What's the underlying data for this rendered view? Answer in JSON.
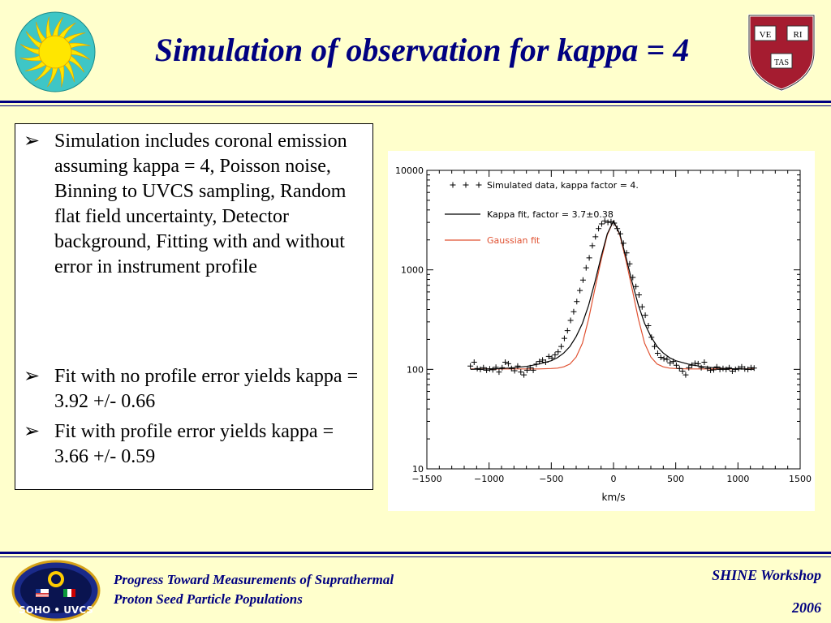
{
  "slide": {
    "title": "Simulation of observation for kappa = 4",
    "bullets": [
      {
        "marker": "➢",
        "text": "Simulation includes coronal emission assuming kappa = 4, Poisson noise, Binning to UVCS sampling, Random flat field uncertainty, Detector background, Fitting with and without error in instrument profile"
      },
      {
        "marker": "➢",
        "text": "Fit with no profile error yields kappa = 3.92 +/- 0.66"
      },
      {
        "marker": "➢",
        "text": "Fit with profile error yields kappa = 3.66 +/- 0.59"
      }
    ],
    "footer": {
      "left_line1": "Progress Toward Measurements of Suprathermal",
      "left_line2": "Proton Seed Particle Populations",
      "right_line1": "SHINE Workshop",
      "right_line2": "2006"
    },
    "logos": {
      "harvard_text": [
        "VE",
        "RI",
        "TAS"
      ],
      "soho_text": "SOHO • UVCS"
    }
  },
  "colors": {
    "background": "#ffffcc",
    "title": "#000080",
    "rule": "#000080",
    "kappa_fit": "#000000",
    "gaussian_fit": "#e05030"
  },
  "chart_data": {
    "type": "line",
    "xlabel": "km/s",
    "xlim": [
      -1500,
      1500
    ],
    "ylim": [
      10,
      10000
    ],
    "yscale": "log",
    "xticks": [
      -1500,
      -1000,
      -500,
      0,
      500,
      1000,
      1500
    ],
    "yticks": [
      10,
      100,
      1000,
      10000
    ],
    "ytick_labels": [
      "10",
      "100",
      "1000",
      "10000"
    ],
    "legend_position": "top-left",
    "series": [
      {
        "name": "Simulated data, kappa factor = 4.",
        "marker": "+",
        "x": [
          -1150,
          -1120,
          -1095,
          -1070,
          -1045,
          -1020,
          -995,
          -970,
          -945,
          -920,
          -895,
          -870,
          -845,
          -820,
          -795,
          -770,
          -745,
          -720,
          -695,
          -670,
          -645,
          -620,
          -595,
          -570,
          -545,
          -520,
          -495,
          -470,
          -445,
          -420,
          -395,
          -370,
          -345,
          -320,
          -295,
          -270,
          -245,
          -220,
          -195,
          -170,
          -145,
          -120,
          -95,
          -70,
          -45,
          -20,
          5,
          30,
          55,
          80,
          105,
          130,
          155,
          180,
          205,
          230,
          255,
          280,
          305,
          330,
          355,
          380,
          405,
          430,
          455,
          480,
          505,
          530,
          555,
          580,
          605,
          630,
          655,
          680,
          705,
          730,
          755,
          780,
          805,
          830,
          855,
          880,
          905,
          930,
          955,
          980,
          1005,
          1030,
          1055,
          1080,
          1105,
          1130
        ],
        "y": [
          108,
          118,
          102,
          100,
          104,
          98,
          101,
          99,
          105,
          94,
          104,
          118,
          114,
          102,
          97,
          108,
          94,
          88,
          98,
          104,
          98,
          113,
          120,
          124,
          118,
          135,
          130,
          140,
          150,
          170,
          205,
          245,
          310,
          380,
          480,
          620,
          790,
          1050,
          1320,
          1750,
          2150,
          2600,
          2900,
          3100,
          3000,
          3050,
          2950,
          2600,
          2300,
          1850,
          1480,
          1150,
          840,
          680,
          560,
          425,
          350,
          275,
          210,
          170,
          145,
          132,
          128,
          126,
          116,
          120,
          110,
          102,
          96,
          88,
          104,
          110,
          115,
          114,
          104,
          118,
          102,
          98,
          99,
          106,
          100,
          102,
          100,
          104,
          96,
          100,
          102,
          106,
          101,
          100,
          104,
          103
        ]
      },
      {
        "name": "Kappa fit, factor = 3.7±0.38",
        "color": "#000000",
        "x": [
          -1150,
          -1000,
          -900,
          -800,
          -700,
          -600,
          -500,
          -450,
          -400,
          -350,
          -300,
          -250,
          -200,
          -150,
          -100,
          -50,
          0,
          50,
          100,
          150,
          200,
          250,
          300,
          350,
          400,
          450,
          500,
          600,
          700,
          800,
          900,
          1000,
          1130
        ],
        "y": [
          100,
          101,
          102,
          104,
          107,
          113,
          122,
          131,
          146,
          170,
          214,
          290,
          440,
          750,
          1350,
          2300,
          3100,
          2300,
          1350,
          750,
          440,
          290,
          214,
          170,
          146,
          131,
          122,
          113,
          107,
          104,
          102,
          101,
          100
        ]
      },
      {
        "name": "Gaussian fit",
        "color": "#e05030",
        "x": [
          -1150,
          -1000,
          -800,
          -600,
          -500,
          -450,
          -400,
          -350,
          -300,
          -250,
          -200,
          -150,
          -100,
          -50,
          0,
          50,
          100,
          150,
          200,
          250,
          300,
          350,
          400,
          450,
          500,
          600,
          800,
          1000,
          1130
        ],
        "y": [
          101,
          101,
          101,
          101,
          102,
          103,
          106,
          113,
          133,
          183,
          320,
          640,
          1250,
          2250,
          3100,
          2250,
          1250,
          640,
          320,
          183,
          133,
          113,
          106,
          103,
          102,
          101,
          101,
          101,
          101
        ]
      }
    ]
  }
}
